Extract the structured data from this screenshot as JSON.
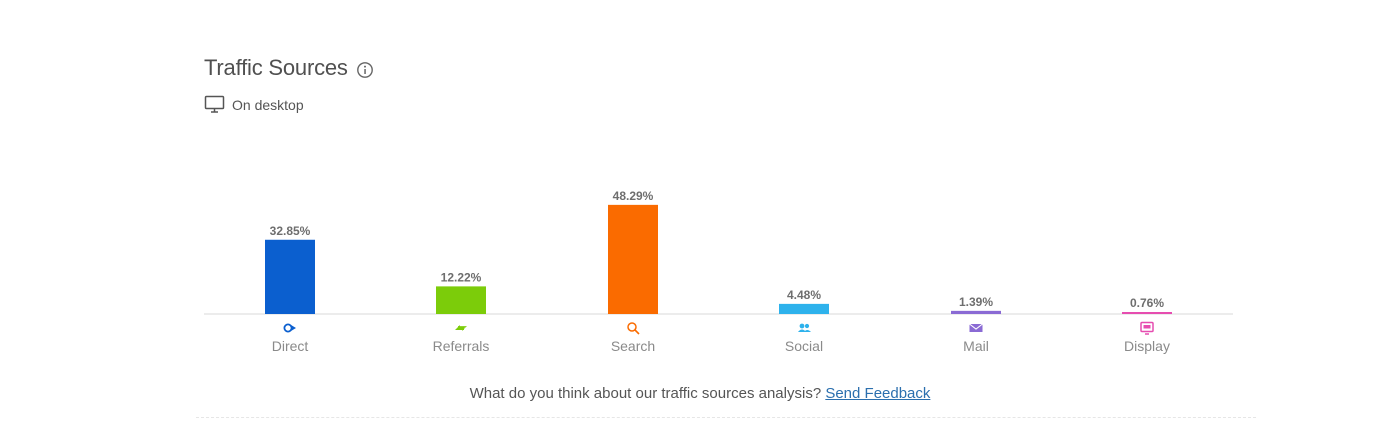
{
  "header": {
    "title": "Traffic Sources",
    "subtitle": "On desktop"
  },
  "feedback": {
    "question": "What do you think about our traffic sources analysis?",
    "link_label": "Send Feedback"
  },
  "chart_data": {
    "type": "bar",
    "categories": [
      "Direct",
      "Referrals",
      "Search",
      "Social",
      "Mail",
      "Display"
    ],
    "values": [
      32.85,
      12.22,
      48.29,
      4.48,
      1.39,
      0.76
    ],
    "value_labels": [
      "32.85%",
      "12.22%",
      "48.29%",
      "4.48%",
      "1.39%",
      "0.76%"
    ],
    "colors": [
      "#0b5fcf",
      "#7ccc0a",
      "#fa6b00",
      "#2eb2ec",
      "#8a6ad4",
      "#e64db0"
    ],
    "icons": [
      "direct-icon",
      "referrals-icon",
      "search-icon",
      "social-icon",
      "mail-icon",
      "display-icon"
    ],
    "unit": "%",
    "grid": false
  }
}
